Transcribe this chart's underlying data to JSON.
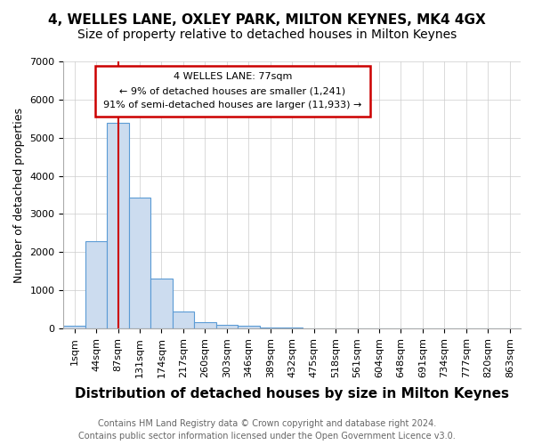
{
  "title1": "4, WELLES LANE, OXLEY PARK, MILTON KEYNES, MK4 4GX",
  "title2": "Size of property relative to detached houses in Milton Keynes",
  "xlabel": "Distribution of detached houses by size in Milton Keynes",
  "ylabel": "Number of detached properties",
  "annotation_title": "4 WELLES LANE: 77sqm",
  "annotation_line1": "← 9% of detached houses are smaller (1,241)",
  "annotation_line2": "91% of semi-detached houses are larger (11,933) →",
  "footer1": "Contains HM Land Registry data © Crown copyright and database right 2024.",
  "footer2": "Contains public sector information licensed under the Open Government Licence v3.0.",
  "bin_labels": [
    "1sqm",
    "44sqm",
    "87sqm",
    "131sqm",
    "174sqm",
    "217sqm",
    "260sqm",
    "303sqm",
    "346sqm",
    "389sqm",
    "432sqm",
    "475sqm",
    "518sqm",
    "561sqm",
    "604sqm",
    "648sqm",
    "691sqm",
    "734sqm",
    "777sqm",
    "820sqm",
    "863sqm"
  ],
  "bar_values": [
    75,
    2280,
    5400,
    3430,
    1300,
    450,
    175,
    90,
    60,
    35,
    15,
    5,
    3,
    2,
    1,
    1,
    0,
    0,
    0,
    0,
    0
  ],
  "bar_color": "#ccdcef",
  "bar_edge_color": "#5b9bd5",
  "red_line_index": 2,
  "red_line_color": "#cc0000",
  "annotation_box_color": "#cc0000",
  "annotation_text_color": "#000000",
  "ylim": [
    0,
    7000
  ],
  "yticks": [
    0,
    1000,
    2000,
    3000,
    4000,
    5000,
    6000,
    7000
  ],
  "grid_color": "#cccccc",
  "background_color": "#ffffff",
  "title1_fontsize": 11,
  "title2_fontsize": 10,
  "xlabel_fontsize": 11,
  "ylabel_fontsize": 9,
  "tick_fontsize": 8,
  "footer_fontsize": 7
}
